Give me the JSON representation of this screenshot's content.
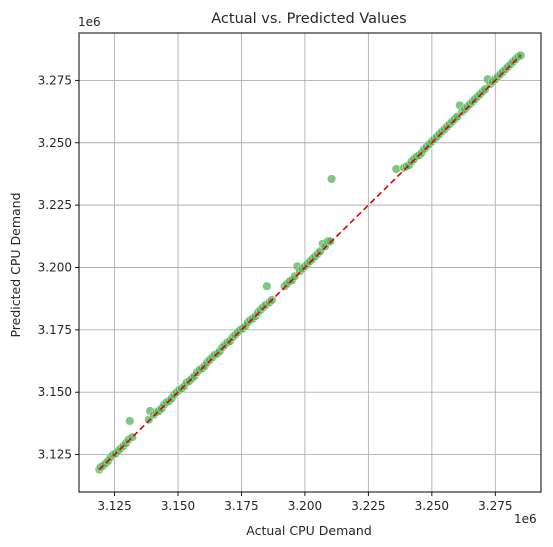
{
  "chart_data": {
    "type": "scatter",
    "title": "Actual vs. Predicted Values",
    "xlabel": "Actual CPU Demand",
    "ylabel": "Predicted CPU Demand",
    "x_offset_label": "1e6",
    "y_offset_label": "1e6",
    "xlim": [
      3111000,
      3293000
    ],
    "ylim": [
      3110000,
      3294000
    ],
    "x_ticks": [
      3125000,
      3150000,
      3175000,
      3200000,
      3225000,
      3250000,
      3275000
    ],
    "x_tick_labels": [
      "3.125",
      "3.150",
      "3.175",
      "3.200",
      "3.225",
      "3.250",
      "3.275"
    ],
    "y_ticks": [
      3125000,
      3150000,
      3175000,
      3200000,
      3225000,
      3250000,
      3275000
    ],
    "y_tick_labels": [
      "3.125",
      "3.150",
      "3.175",
      "3.200",
      "3.225",
      "3.250",
      "3.275"
    ],
    "grid": true,
    "colors": {
      "points": "#4caf50",
      "reference_line": "#e00000",
      "grid": "#b0b0b0",
      "axes": "#000000"
    },
    "reference_line": {
      "style": "dashed",
      "from": [
        3119000,
        3119000
      ],
      "to": [
        3285000,
        3285000
      ]
    },
    "points": [
      [
        3119000,
        3119000
      ],
      [
        3119500,
        3120000
      ],
      [
        3120500,
        3120500
      ],
      [
        3121500,
        3121500
      ],
      [
        3122500,
        3122500
      ],
      [
        3123500,
        3124000
      ],
      [
        3124500,
        3125000
      ],
      [
        3125500,
        3125500
      ],
      [
        3126500,
        3126500
      ],
      [
        3127500,
        3127500
      ],
      [
        3128500,
        3128500
      ],
      [
        3129500,
        3129500
      ],
      [
        3130500,
        3131000
      ],
      [
        3131000,
        3138500
      ],
      [
        3132000,
        3132000
      ],
      [
        3138500,
        3139000
      ],
      [
        3139000,
        3142500
      ],
      [
        3140500,
        3141000
      ],
      [
        3141500,
        3142000
      ],
      [
        3142500,
        3142500
      ],
      [
        3143500,
        3143500
      ],
      [
        3144500,
        3145000
      ],
      [
        3145500,
        3146000
      ],
      [
        3146500,
        3146500
      ],
      [
        3147500,
        3147500
      ],
      [
        3148500,
        3149000
      ],
      [
        3149500,
        3150000
      ],
      [
        3150500,
        3151000
      ],
      [
        3151500,
        3151500
      ],
      [
        3152500,
        3152500
      ],
      [
        3153500,
        3154000
      ],
      [
        3154500,
        3154500
      ],
      [
        3155500,
        3155500
      ],
      [
        3156500,
        3156500
      ],
      [
        3157500,
        3158000
      ],
      [
        3158500,
        3159000
      ],
      [
        3159500,
        3159500
      ],
      [
        3160500,
        3160500
      ],
      [
        3161500,
        3162000
      ],
      [
        3162500,
        3163000
      ],
      [
        3163500,
        3164000
      ],
      [
        3164500,
        3165000
      ],
      [
        3165500,
        3165500
      ],
      [
        3166500,
        3166500
      ],
      [
        3167500,
        3168000
      ],
      [
        3168500,
        3169000
      ],
      [
        3169500,
        3170000
      ],
      [
        3170500,
        3170500
      ],
      [
        3171500,
        3172000
      ],
      [
        3172500,
        3173000
      ],
      [
        3173500,
        3174000
      ],
      [
        3174500,
        3175000
      ],
      [
        3175500,
        3175500
      ],
      [
        3176500,
        3176500
      ],
      [
        3177500,
        3178000
      ],
      [
        3178500,
        3179000
      ],
      [
        3179500,
        3179500
      ],
      [
        3180500,
        3180500
      ],
      [
        3181500,
        3182000
      ],
      [
        3182500,
        3183000
      ],
      [
        3183500,
        3184000
      ],
      [
        3184500,
        3185000
      ],
      [
        3185000,
        3192500
      ],
      [
        3186000,
        3186000
      ],
      [
        3187000,
        3187000
      ],
      [
        3192000,
        3192500
      ],
      [
        3193000,
        3193500
      ],
      [
        3194000,
        3194500
      ],
      [
        3195000,
        3195000
      ],
      [
        3196000,
        3196500
      ],
      [
        3197000,
        3200500
      ],
      [
        3198000,
        3198500
      ],
      [
        3199000,
        3199500
      ],
      [
        3200000,
        3200500
      ],
      [
        3201000,
        3201500
      ],
      [
        3202000,
        3202500
      ],
      [
        3203000,
        3203500
      ],
      [
        3204000,
        3204500
      ],
      [
        3205000,
        3205500
      ],
      [
        3206000,
        3206500
      ],
      [
        3207000,
        3209500
      ],
      [
        3208000,
        3208500
      ],
      [
        3209000,
        3210500
      ],
      [
        3210000,
        3210500
      ],
      [
        3210500,
        3235500
      ],
      [
        3236000,
        3239500
      ],
      [
        3239000,
        3240000
      ],
      [
        3240000,
        3240500
      ],
      [
        3241000,
        3241000
      ],
      [
        3242000,
        3242500
      ],
      [
        3243000,
        3243500
      ],
      [
        3244000,
        3244500
      ],
      [
        3245000,
        3245000
      ],
      [
        3246000,
        3246000
      ],
      [
        3247000,
        3247500
      ],
      [
        3248000,
        3248500
      ],
      [
        3249000,
        3249500
      ],
      [
        3250000,
        3250500
      ],
      [
        3251000,
        3251500
      ],
      [
        3252000,
        3252500
      ],
      [
        3253000,
        3253500
      ],
      [
        3254000,
        3254500
      ],
      [
        3255000,
        3255500
      ],
      [
        3256000,
        3256500
      ],
      [
        3257000,
        3257500
      ],
      [
        3258000,
        3258500
      ],
      [
        3259000,
        3259500
      ],
      [
        3260000,
        3260500
      ],
      [
        3261000,
        3265000
      ],
      [
        3262000,
        3262500
      ],
      [
        3263000,
        3263500
      ],
      [
        3264000,
        3264500
      ],
      [
        3265000,
        3265500
      ],
      [
        3266000,
        3266500
      ],
      [
        3267000,
        3267500
      ],
      [
        3268000,
        3268500
      ],
      [
        3269000,
        3269500
      ],
      [
        3270000,
        3270500
      ],
      [
        3271000,
        3271500
      ],
      [
        3272000,
        3275500
      ],
      [
        3273000,
        3273500
      ],
      [
        3274000,
        3274500
      ],
      [
        3275000,
        3275500
      ],
      [
        3276000,
        3276500
      ],
      [
        3277000,
        3277500
      ],
      [
        3278000,
        3278500
      ],
      [
        3279000,
        3279500
      ],
      [
        3280000,
        3280500
      ],
      [
        3281000,
        3281500
      ],
      [
        3282000,
        3282500
      ],
      [
        3283000,
        3283500
      ],
      [
        3284000,
        3284500
      ],
      [
        3285000,
        3285000
      ]
    ]
  }
}
